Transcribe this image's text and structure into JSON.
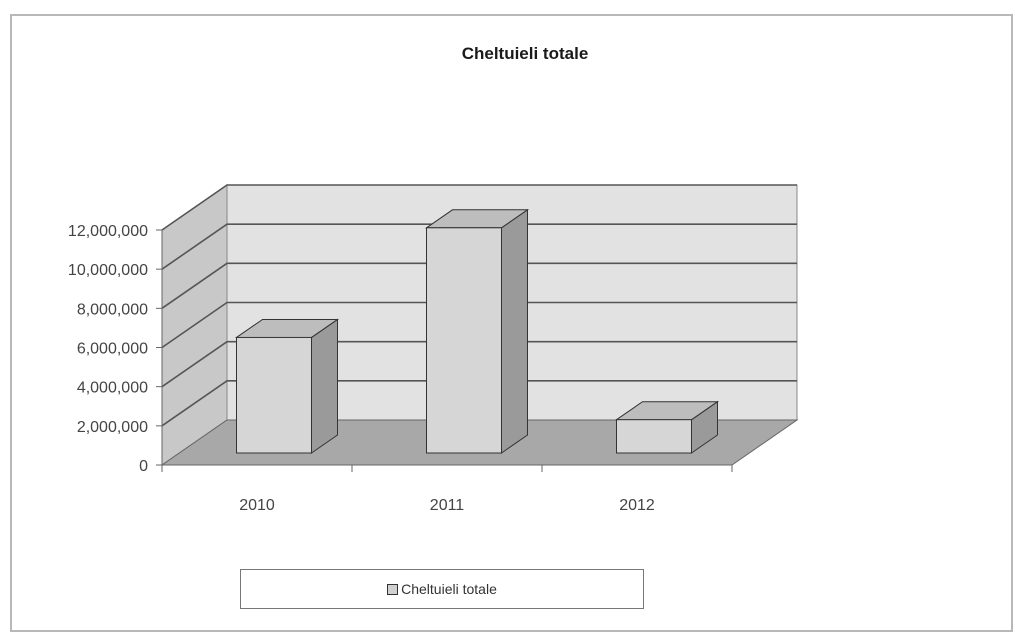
{
  "chart_data": {
    "type": "bar",
    "title": "Cheltuieli totale",
    "categories": [
      "2010",
      "2011",
      "2012"
    ],
    "series": [
      {
        "name": "Cheltuieli totale",
        "values": [
          5900000,
          11500000,
          1700000
        ]
      }
    ],
    "ylim": [
      0,
      12000000
    ],
    "yticks": [
      "0",
      "2,000,000",
      "4,000,000",
      "6,000,000",
      "8,000,000",
      "10,000,000",
      "12,000,000"
    ],
    "yticks_values": [
      0,
      2000000,
      4000000,
      6000000,
      8000000,
      10000000,
      12000000
    ],
    "grid": true,
    "legend_position": "bottom",
    "three_d": true,
    "colors": {
      "bar_front": "#d6d6d6",
      "bar_side": "#9a9a9a",
      "bar_top": "#bdbdbd",
      "back_wall": "#e2e2e2",
      "side_wall": "#c8c8c8",
      "floor": "#a8a8a8",
      "grid": "#555555"
    }
  }
}
